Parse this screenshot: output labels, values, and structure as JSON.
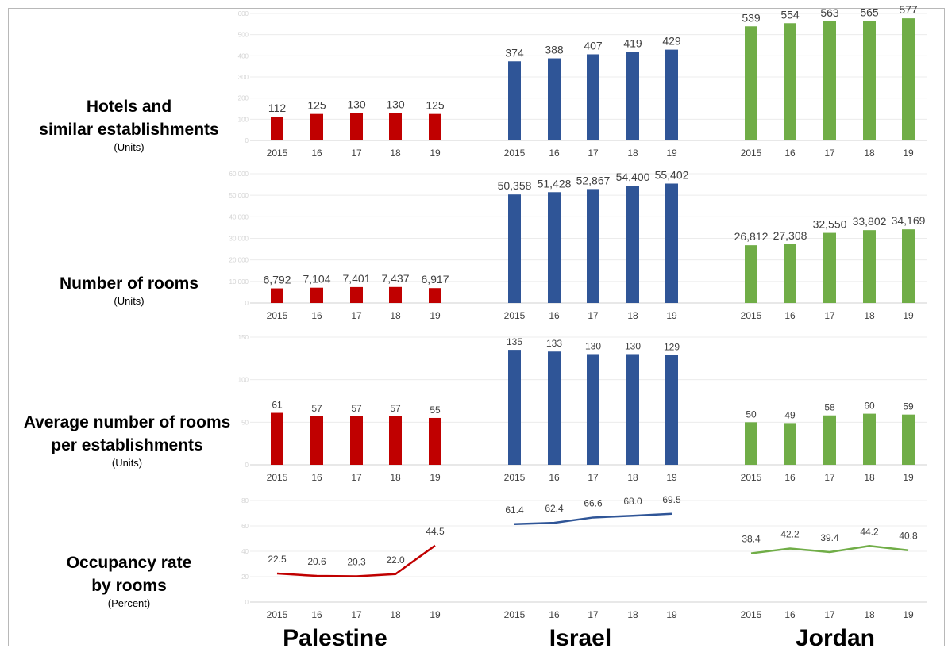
{
  "countries": [
    "Palestine",
    "Israel",
    "Jordan"
  ],
  "colors": {
    "Palestine": "#c00000",
    "Israel": "#2f5597",
    "Jordan": "#70ad47"
  },
  "years": [
    "2015",
    "16",
    "17",
    "18",
    "19"
  ],
  "rows": [
    {
      "title_line1": "Hotels and",
      "title_line2": "similar establishments",
      "unit": "(Units)"
    },
    {
      "title_line1": "Number of rooms",
      "title_line2": "",
      "unit": "(Units)"
    },
    {
      "title_line1": "Average number of rooms",
      "title_line2": "per establishments",
      "unit": "(Units)"
    },
    {
      "title_line1": "Occupancy rate",
      "title_line2": "by rooms",
      "unit": "(Percent)"
    }
  ],
  "chart_data": [
    {
      "type": "bar",
      "ylim": [
        0,
        600
      ],
      "yticks": [
        0,
        100,
        200,
        300,
        400,
        500,
        600
      ],
      "categories": [
        "2015",
        "16",
        "17",
        "18",
        "19"
      ],
      "series": [
        {
          "name": "Palestine",
          "values": [
            112,
            125,
            130,
            130,
            125
          ],
          "labels": [
            "112",
            "125",
            "130",
            "130",
            "125"
          ]
        },
        {
          "name": "Israel",
          "values": [
            374,
            388,
            407,
            419,
            429
          ],
          "labels": [
            "374",
            "388",
            "407",
            "419",
            "429"
          ]
        },
        {
          "name": "Jordan",
          "values": [
            539,
            554,
            563,
            565,
            577
          ],
          "labels": [
            "539",
            "554",
            "563",
            "565",
            "577"
          ]
        }
      ]
    },
    {
      "type": "bar",
      "ylim": [
        0,
        60000
      ],
      "yticks": [
        0,
        10000,
        20000,
        30000,
        40000,
        50000,
        60000
      ],
      "categories": [
        "2015",
        "16",
        "17",
        "18",
        "19"
      ],
      "series": [
        {
          "name": "Palestine",
          "values": [
            6792,
            7104,
            7401,
            7437,
            6917
          ],
          "labels": [
            "6,792",
            "7,104",
            "7,401",
            "7,437",
            "6,917"
          ]
        },
        {
          "name": "Israel",
          "values": [
            50358,
            51428,
            52867,
            54400,
            55402
          ],
          "labels": [
            "50,358",
            "51,428",
            "52,867",
            "54,400",
            "55,402"
          ]
        },
        {
          "name": "Jordan",
          "values": [
            26812,
            27308,
            32550,
            33802,
            34169
          ],
          "labels": [
            "26,812",
            "27,308",
            "32,550",
            "33,802",
            "34,169"
          ]
        }
      ]
    },
    {
      "type": "bar",
      "ylim": [
        0,
        150
      ],
      "yticks": [
        0,
        50,
        100,
        150
      ],
      "categories": [
        "2015",
        "16",
        "17",
        "18",
        "19"
      ],
      "series": [
        {
          "name": "Palestine",
          "values": [
            61,
            57,
            57,
            57,
            55
          ],
          "labels": [
            "61",
            "57",
            "57",
            "57",
            "55"
          ]
        },
        {
          "name": "Israel",
          "values": [
            135,
            133,
            130,
            130,
            129
          ],
          "labels": [
            "135",
            "133",
            "130",
            "130",
            "129"
          ]
        },
        {
          "name": "Jordan",
          "values": [
            50,
            49,
            58,
            60,
            59
          ],
          "labels": [
            "50",
            "49",
            "58",
            "60",
            "59"
          ]
        }
      ]
    },
    {
      "type": "line",
      "ylim": [
        0,
        80
      ],
      "yticks": [
        0,
        20,
        40,
        60,
        80
      ],
      "categories": [
        "2015",
        "16",
        "17",
        "18",
        "19"
      ],
      "series": [
        {
          "name": "Palestine",
          "values": [
            22.5,
            20.6,
            20.3,
            22.0,
            44.5
          ],
          "labels": [
            "22.5",
            "20.6",
            "20.3",
            "22.0",
            "44.5"
          ]
        },
        {
          "name": "Israel",
          "values": [
            61.4,
            62.4,
            66.6,
            68.0,
            69.5
          ],
          "labels": [
            "61.4",
            "62.4",
            "66.6",
            "68.0",
            "69.5"
          ]
        },
        {
          "name": "Jordan",
          "values": [
            38.4,
            42.2,
            39.4,
            44.2,
            40.8
          ],
          "labels": [
            "38.4",
            "42.2",
            "39.4",
            "44.2",
            "40.8"
          ]
        }
      ]
    }
  ]
}
